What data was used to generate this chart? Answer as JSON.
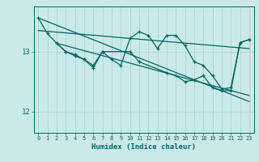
{
  "xlabel": "Humidex (Indice chaleur)",
  "xlim": [
    -0.5,
    23.5
  ],
  "ylim": [
    11.65,
    13.75
  ],
  "yticks": [
    12,
    13
  ],
  "xticks": [
    0,
    1,
    2,
    3,
    4,
    5,
    6,
    7,
    8,
    9,
    10,
    11,
    12,
    13,
    14,
    15,
    16,
    17,
    18,
    19,
    20,
    21,
    22,
    23
  ],
  "background_color": "#cce9e9",
  "grid_color": "#aad0d0",
  "line_color": "#006666",
  "line1_x": [
    0,
    1,
    2,
    3,
    4,
    5,
    6,
    7,
    8,
    9,
    10,
    11,
    12,
    13,
    14,
    15,
    16,
    17,
    18,
    19,
    20,
    21,
    22,
    23
  ],
  "line1_y": [
    13.56,
    13.3,
    13.14,
    13.0,
    12.95,
    12.87,
    12.77,
    13.0,
    12.87,
    12.77,
    13.22,
    13.33,
    13.27,
    13.05,
    13.27,
    13.27,
    13.1,
    12.83,
    12.77,
    12.6,
    12.38,
    12.4,
    13.15,
    13.2
  ],
  "line2_x": [
    2,
    3,
    4,
    5,
    6,
    7,
    10,
    11,
    14,
    15,
    16,
    17,
    18,
    19,
    20,
    21,
    22,
    23
  ],
  "line2_y": [
    13.14,
    13.0,
    12.93,
    12.87,
    12.73,
    13.0,
    13.0,
    12.83,
    12.65,
    12.6,
    12.5,
    12.53,
    12.6,
    12.4,
    12.35,
    12.35,
    13.15,
    13.2
  ],
  "trend1_x": [
    0,
    23
  ],
  "trend1_y": [
    13.56,
    12.17
  ],
  "trend2_x": [
    2,
    23
  ],
  "trend2_y": [
    13.14,
    12.27
  ],
  "trend3_x": [
    0,
    23
  ],
  "trend3_y": [
    13.35,
    13.05
  ]
}
